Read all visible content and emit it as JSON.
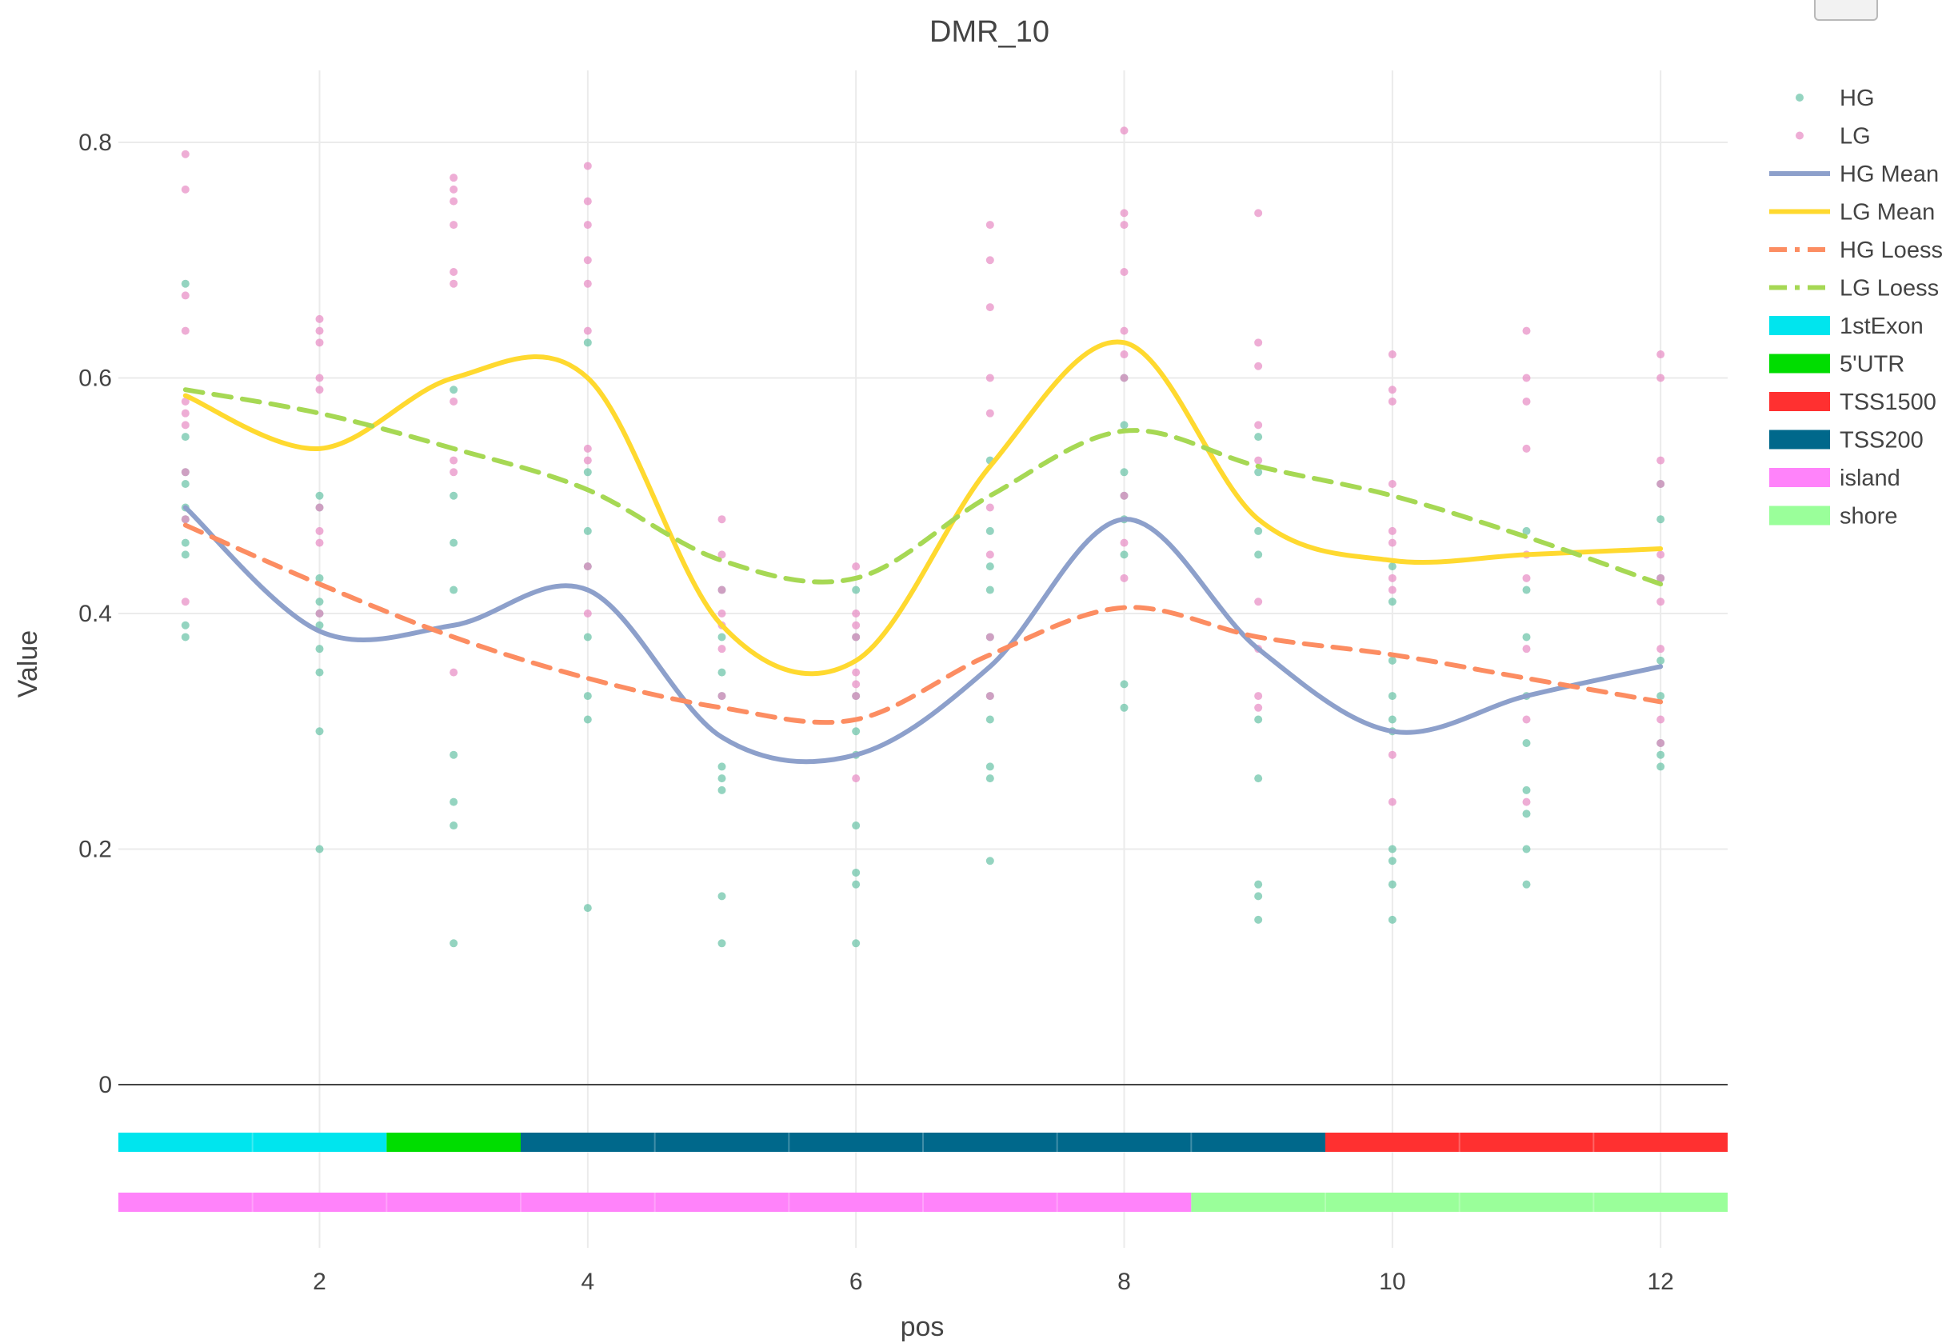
{
  "chart_data": {
    "type": "line",
    "title": "DMR_10",
    "xlabel": "pos",
    "ylabel": "Value",
    "xlim": [
      0.5,
      12.5
    ],
    "ylim": [
      -0.11,
      0.86
    ],
    "x_ticks": [
      2,
      4,
      6,
      8,
      10,
      12
    ],
    "y_ticks": [
      0,
      0.2,
      0.4,
      0.6,
      0.8
    ],
    "x_tick_labels": [
      "2",
      "4",
      "6",
      "8",
      "10",
      "12"
    ],
    "y_tick_labels": [
      "0",
      "0.2",
      "0.4",
      "0.6",
      "0.8"
    ],
    "grid": true,
    "legend_position": "right",
    "scatter_series": [
      {
        "name": "HG",
        "color": "#66c2a5",
        "points": {
          "1": [
            0.68,
            0.55,
            0.52,
            0.51,
            0.49,
            0.48,
            0.46,
            0.45,
            0.39,
            0.38
          ],
          "2": [
            0.5,
            0.49,
            0.43,
            0.41,
            0.4,
            0.39,
            0.37,
            0.35,
            0.3,
            0.2
          ],
          "3": [
            0.59,
            0.5,
            0.46,
            0.42,
            0.28,
            0.24,
            0.22,
            0.12
          ],
          "4": [
            0.63,
            0.52,
            0.47,
            0.44,
            0.38,
            0.33,
            0.31,
            0.15
          ],
          "5": [
            0.42,
            0.38,
            0.35,
            0.33,
            0.27,
            0.26,
            0.25,
            0.16,
            0.12
          ],
          "6": [
            0.42,
            0.38,
            0.33,
            0.3,
            0.28,
            0.22,
            0.18,
            0.17,
            0.12
          ],
          "7": [
            0.53,
            0.47,
            0.44,
            0.42,
            0.38,
            0.33,
            0.31,
            0.27,
            0.26,
            0.19
          ],
          "8": [
            0.6,
            0.56,
            0.52,
            0.5,
            0.48,
            0.45,
            0.34,
            0.32
          ],
          "9": [
            0.55,
            0.52,
            0.47,
            0.45,
            0.31,
            0.26,
            0.17,
            0.16,
            0.14
          ],
          "10": [
            0.44,
            0.41,
            0.36,
            0.33,
            0.31,
            0.3,
            0.2,
            0.19,
            0.17,
            0.14
          ],
          "11": [
            0.47,
            0.42,
            0.38,
            0.33,
            0.29,
            0.25,
            0.23,
            0.2,
            0.17
          ],
          "12": [
            0.51,
            0.48,
            0.43,
            0.36,
            0.33,
            0.29,
            0.28,
            0.27
          ]
        }
      },
      {
        "name": "LG",
        "color": "#e78ac3",
        "points": {
          "1": [
            0.79,
            0.76,
            0.67,
            0.64,
            0.58,
            0.57,
            0.56,
            0.52,
            0.48,
            0.41
          ],
          "2": [
            0.65,
            0.64,
            0.63,
            0.6,
            0.59,
            0.49,
            0.47,
            0.46,
            0.4
          ],
          "3": [
            0.77,
            0.76,
            0.75,
            0.73,
            0.69,
            0.68,
            0.58,
            0.53,
            0.52,
            0.35
          ],
          "4": [
            0.78,
            0.75,
            0.73,
            0.7,
            0.68,
            0.64,
            0.54,
            0.53,
            0.44,
            0.4
          ],
          "5": [
            0.48,
            0.45,
            0.42,
            0.4,
            0.39,
            0.37,
            0.33
          ],
          "6": [
            0.44,
            0.4,
            0.39,
            0.38,
            0.35,
            0.34,
            0.33,
            0.26
          ],
          "7": [
            0.73,
            0.7,
            0.66,
            0.6,
            0.57,
            0.49,
            0.45,
            0.38,
            0.33
          ],
          "8": [
            0.81,
            0.74,
            0.73,
            0.69,
            0.64,
            0.62,
            0.6,
            0.5,
            0.46,
            0.43
          ],
          "9": [
            0.74,
            0.63,
            0.61,
            0.56,
            0.53,
            0.41,
            0.37,
            0.33,
            0.32
          ],
          "10": [
            0.62,
            0.59,
            0.58,
            0.51,
            0.47,
            0.46,
            0.43,
            0.42,
            0.28,
            0.24
          ],
          "11": [
            0.64,
            0.6,
            0.58,
            0.54,
            0.45,
            0.43,
            0.37,
            0.31,
            0.24
          ],
          "12": [
            0.62,
            0.6,
            0.53,
            0.51,
            0.45,
            0.43,
            0.41,
            0.37,
            0.31,
            0.29
          ]
        }
      }
    ],
    "line_series": [
      {
        "name": "HG Mean",
        "color": "#8da0cb",
        "dash": "solid",
        "x": [
          1,
          2,
          3,
          4,
          5,
          6,
          7,
          8,
          9,
          10,
          11,
          12
        ],
        "y": [
          0.49,
          0.385,
          0.39,
          0.42,
          0.295,
          0.28,
          0.355,
          0.48,
          0.37,
          0.3,
          0.33,
          0.355
        ]
      },
      {
        "name": "LG Mean",
        "color": "#ffd92f",
        "dash": "solid",
        "x": [
          1,
          2,
          3,
          4,
          5,
          6,
          7,
          8,
          9,
          10,
          11,
          12
        ],
        "y": [
          0.585,
          0.54,
          0.6,
          0.6,
          0.39,
          0.36,
          0.525,
          0.63,
          0.48,
          0.445,
          0.45,
          0.455
        ]
      },
      {
        "name": "HG Loess",
        "color": "#fc8d62",
        "dash": "dash",
        "x": [
          1,
          2,
          3,
          4,
          5,
          6,
          7,
          8,
          9,
          10,
          11,
          12
        ],
        "y": [
          0.475,
          0.425,
          0.38,
          0.345,
          0.32,
          0.31,
          0.365,
          0.405,
          0.38,
          0.365,
          0.345,
          0.325
        ]
      },
      {
        "name": "LG Loess",
        "color": "#a6d854",
        "dash": "dash",
        "x": [
          1,
          2,
          3,
          4,
          5,
          6,
          7,
          8,
          9,
          10,
          11,
          12
        ],
        "y": [
          0.59,
          0.57,
          0.54,
          0.505,
          0.445,
          0.43,
          0.5,
          0.555,
          0.525,
          0.5,
          0.465,
          0.425
        ]
      }
    ],
    "annotation_tracks": [
      {
        "row": 1,
        "segments": [
          {
            "label": "1stExon",
            "from": 1,
            "to": 2,
            "color": "#00e5ee"
          },
          {
            "label": "5'UTR",
            "from": 3,
            "to": 3,
            "color": "#00dd00"
          },
          {
            "label": "TSS200",
            "from": 4,
            "to": 9,
            "color": "#00688b"
          },
          {
            "label": "TSS1500",
            "from": 10,
            "to": 12,
            "color": "#ff3030"
          }
        ]
      },
      {
        "row": 2,
        "segments": [
          {
            "label": "island",
            "from": 1,
            "to": 8,
            "color": "#ff83fa"
          },
          {
            "label": "shore",
            "from": 9,
            "to": 12,
            "color": "#9aff9a"
          }
        ]
      }
    ],
    "legend": [
      {
        "label": "HG",
        "kind": "marker",
        "color": "#66c2a5"
      },
      {
        "label": "LG",
        "kind": "marker",
        "color": "#e78ac3"
      },
      {
        "label": "HG Mean",
        "kind": "line",
        "color": "#8da0cb"
      },
      {
        "label": "LG Mean",
        "kind": "line",
        "color": "#ffd92f"
      },
      {
        "label": "HG Loess",
        "kind": "dashdot",
        "color": "#fc8d62"
      },
      {
        "label": "LG Loess",
        "kind": "dashdot",
        "color": "#a6d854"
      },
      {
        "label": "1stExon",
        "kind": "box",
        "color": "#00e5ee"
      },
      {
        "label": "5'UTR",
        "kind": "box",
        "color": "#00dd00"
      },
      {
        "label": "TSS1500",
        "kind": "box",
        "color": "#ff3030"
      },
      {
        "label": "TSS200",
        "kind": "box",
        "color": "#00688b"
      },
      {
        "label": "island",
        "kind": "box",
        "color": "#ff83fa"
      },
      {
        "label": "shore",
        "kind": "box",
        "color": "#9aff9a"
      }
    ]
  }
}
